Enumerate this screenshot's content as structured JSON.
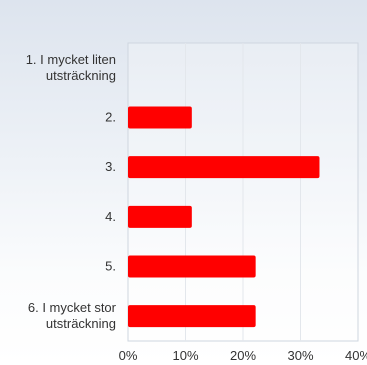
{
  "chart_data": {
    "type": "bar",
    "orientation": "horizontal",
    "categories": [
      "1. I mycket liten utsträckning",
      "2.",
      "3.",
      "4.",
      "5.",
      "6. I mycket stor utsträckning"
    ],
    "category_label_lines": [
      [
        "1. I mycket liten",
        "utsträckning"
      ],
      [
        "2."
      ],
      [
        "3."
      ],
      [
        "4."
      ],
      [
        "5."
      ],
      [
        "6. I mycket stor",
        "utsträckning"
      ]
    ],
    "values": [
      0,
      11.1,
      33.3,
      11.1,
      22.2,
      22.2
    ],
    "xlim": [
      0,
      40
    ],
    "x_ticks": [
      0,
      10,
      20,
      30,
      40
    ],
    "x_tick_labels": [
      "0%",
      "10%",
      "20%",
      "30%",
      "40%"
    ],
    "grid": true,
    "bar_color": "#ff0000",
    "title": "",
    "xlabel": "",
    "ylabel": ""
  }
}
